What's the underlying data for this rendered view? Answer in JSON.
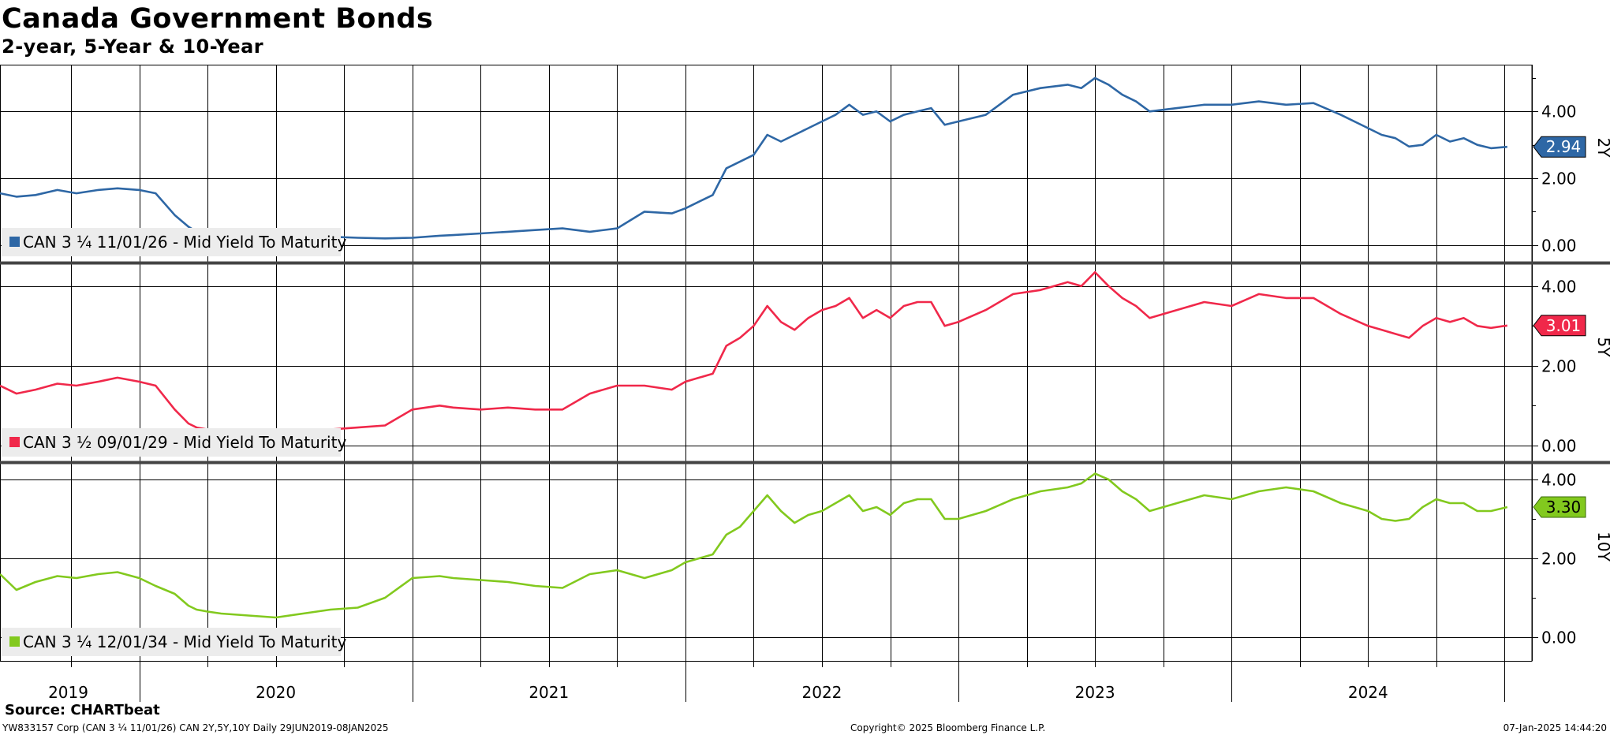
{
  "header": {
    "title": "Canada Government Bonds",
    "subtitle": "2-year, 5-Year & 10-Year"
  },
  "footer": {
    "source": "Source: CHARTbeat",
    "ticker_info": "YW833157 Corp (CAN 3 ¼ 11/01/26) CAN 2Y,5Y,10Y  Daily 29JUN2019-08JAN2025",
    "copyright": "Copyright© 2025 Bloomberg Finance L.P.",
    "timestamp": "07-Jan-2025 14:44:20"
  },
  "colors": {
    "series_2y": "#2e67a5",
    "series_5y": "#f0284a",
    "series_10y": "#82c91e",
    "grid": "#000000",
    "legend_bg": "#ececec",
    "separator": "#444444"
  },
  "chart_data": [
    {
      "type": "line",
      "pane_label": "2Y",
      "legend": "CAN 3 ¼ 11/01/26 - Mid Yield To Maturity",
      "last_value_label": "2.94",
      "ylim": [
        -0.5,
        5.4
      ],
      "yticks": [
        "4.00",
        "2.00",
        "0.00"
      ],
      "ytick_values": [
        4,
        2,
        0
      ],
      "x": [
        2019.49,
        2019.55,
        2019.62,
        2019.7,
        2019.77,
        2019.85,
        2019.92,
        2020.0,
        2020.06,
        2020.13,
        2020.18,
        2020.21,
        2020.25,
        2020.3,
        2020.4,
        2020.5,
        2020.6,
        2020.7,
        2020.8,
        2020.9,
        2021.0,
        2021.1,
        2021.15,
        2021.25,
        2021.35,
        2021.45,
        2021.55,
        2021.65,
        2021.75,
        2021.85,
        2021.95,
        2022.0,
        2022.05,
        2022.1,
        2022.15,
        2022.2,
        2022.25,
        2022.3,
        2022.35,
        2022.4,
        2022.45,
        2022.5,
        2022.55,
        2022.6,
        2022.65,
        2022.7,
        2022.75,
        2022.8,
        2022.85,
        2022.9,
        2022.95,
        2023.0,
        2023.1,
        2023.2,
        2023.3,
        2023.4,
        2023.45,
        2023.5,
        2023.55,
        2023.6,
        2023.65,
        2023.7,
        2023.8,
        2023.9,
        2024.0,
        2024.1,
        2024.2,
        2024.3,
        2024.4,
        2024.5,
        2024.55,
        2024.6,
        2024.65,
        2024.7,
        2024.75,
        2024.8,
        2024.85,
        2024.9,
        2024.95,
        2025.01
      ],
      "y": [
        1.55,
        1.45,
        1.5,
        1.65,
        1.55,
        1.65,
        1.7,
        1.65,
        1.55,
        0.9,
        0.55,
        0.4,
        0.35,
        0.3,
        0.3,
        0.28,
        0.25,
        0.25,
        0.22,
        0.2,
        0.22,
        0.28,
        0.3,
        0.35,
        0.4,
        0.45,
        0.5,
        0.4,
        0.5,
        1.0,
        0.95,
        1.1,
        1.3,
        1.5,
        2.3,
        2.5,
        2.7,
        3.3,
        3.1,
        3.3,
        3.5,
        3.7,
        3.9,
        4.2,
        3.9,
        4.0,
        3.7,
        3.9,
        4.0,
        4.1,
        3.6,
        3.7,
        3.9,
        4.5,
        4.7,
        4.8,
        4.7,
        5.0,
        4.8,
        4.5,
        4.3,
        4.0,
        4.1,
        4.2,
        4.2,
        4.3,
        4.2,
        4.25,
        3.9,
        3.5,
        3.3,
        3.2,
        2.95,
        3.0,
        3.3,
        3.1,
        3.2,
        3.0,
        2.9,
        2.94
      ]
    },
    {
      "type": "line",
      "pane_label": "5Y",
      "legend": "CAN 3 ½ 09/01/29 - Mid Yield To Maturity",
      "last_value_label": "3.01",
      "ylim": [
        -0.4,
        4.55
      ],
      "yticks": [
        "4.00",
        "2.00",
        "0.00"
      ],
      "ytick_values": [
        4,
        2,
        0
      ],
      "x": [
        2019.49,
        2019.55,
        2019.62,
        2019.7,
        2019.77,
        2019.85,
        2019.92,
        2020.0,
        2020.06,
        2020.13,
        2020.18,
        2020.21,
        2020.25,
        2020.3,
        2020.4,
        2020.5,
        2020.6,
        2020.7,
        2020.8,
        2020.9,
        2021.0,
        2021.1,
        2021.15,
        2021.25,
        2021.35,
        2021.45,
        2021.55,
        2021.65,
        2021.75,
        2021.85,
        2021.95,
        2022.0,
        2022.05,
        2022.1,
        2022.15,
        2022.2,
        2022.25,
        2022.3,
        2022.35,
        2022.4,
        2022.45,
        2022.5,
        2022.55,
        2022.6,
        2022.65,
        2022.7,
        2022.75,
        2022.8,
        2022.85,
        2022.9,
        2022.95,
        2023.0,
        2023.1,
        2023.2,
        2023.3,
        2023.4,
        2023.45,
        2023.5,
        2023.55,
        2023.6,
        2023.65,
        2023.7,
        2023.8,
        2023.9,
        2024.0,
        2024.1,
        2024.2,
        2024.3,
        2024.4,
        2024.5,
        2024.55,
        2024.6,
        2024.65,
        2024.7,
        2024.75,
        2024.8,
        2024.85,
        2024.9,
        2024.95,
        2025.01
      ],
      "y": [
        1.5,
        1.3,
        1.4,
        1.55,
        1.5,
        1.6,
        1.7,
        1.6,
        1.5,
        0.9,
        0.55,
        0.45,
        0.4,
        0.35,
        0.35,
        0.35,
        0.38,
        0.4,
        0.45,
        0.5,
        0.9,
        1.0,
        0.95,
        0.9,
        0.95,
        0.9,
        0.9,
        1.3,
        1.5,
        1.5,
        1.4,
        1.6,
        1.7,
        1.8,
        2.5,
        2.7,
        3.0,
        3.5,
        3.1,
        2.9,
        3.2,
        3.4,
        3.5,
        3.7,
        3.2,
        3.4,
        3.2,
        3.5,
        3.6,
        3.6,
        3.0,
        3.1,
        3.4,
        3.8,
        3.9,
        4.1,
        4.0,
        4.35,
        4.0,
        3.7,
        3.5,
        3.2,
        3.4,
        3.6,
        3.5,
        3.8,
        3.7,
        3.7,
        3.3,
        3.0,
        2.9,
        2.8,
        2.7,
        3.0,
        3.2,
        3.1,
        3.2,
        3.0,
        2.95,
        3.01
      ]
    },
    {
      "type": "line",
      "pane_label": "10Y",
      "legend": "CAN 3 ¼ 12/01/34 - Mid Yield To Maturity",
      "last_value_label": "3.30",
      "ylim": [
        -0.6,
        4.4
      ],
      "yticks": [
        "4.00",
        "2.00",
        "0.00"
      ],
      "ytick_values": [
        4,
        2,
        0
      ],
      "x": [
        2019.49,
        2019.55,
        2019.62,
        2019.7,
        2019.77,
        2019.85,
        2019.92,
        2020.0,
        2020.06,
        2020.13,
        2020.18,
        2020.21,
        2020.25,
        2020.3,
        2020.4,
        2020.5,
        2020.6,
        2020.7,
        2020.8,
        2020.9,
        2021.0,
        2021.1,
        2021.15,
        2021.25,
        2021.35,
        2021.45,
        2021.55,
        2021.65,
        2021.75,
        2021.85,
        2021.95,
        2022.0,
        2022.05,
        2022.1,
        2022.15,
        2022.2,
        2022.25,
        2022.3,
        2022.35,
        2022.4,
        2022.45,
        2022.5,
        2022.55,
        2022.6,
        2022.65,
        2022.7,
        2022.75,
        2022.8,
        2022.85,
        2022.9,
        2022.95,
        2023.0,
        2023.1,
        2023.2,
        2023.3,
        2023.4,
        2023.45,
        2023.5,
        2023.55,
        2023.6,
        2023.65,
        2023.7,
        2023.8,
        2023.9,
        2024.0,
        2024.1,
        2024.2,
        2024.3,
        2024.4,
        2024.5,
        2024.55,
        2024.6,
        2024.65,
        2024.7,
        2024.75,
        2024.8,
        2024.85,
        2024.9,
        2024.95,
        2025.01
      ],
      "y": [
        1.6,
        1.2,
        1.4,
        1.55,
        1.5,
        1.6,
        1.65,
        1.5,
        1.3,
        1.1,
        0.8,
        0.7,
        0.65,
        0.6,
        0.55,
        0.5,
        0.6,
        0.7,
        0.75,
        1.0,
        1.5,
        1.55,
        1.5,
        1.45,
        1.4,
        1.3,
        1.25,
        1.6,
        1.7,
        1.5,
        1.7,
        1.9,
        2.0,
        2.1,
        2.6,
        2.8,
        3.2,
        3.6,
        3.2,
        2.9,
        3.1,
        3.2,
        3.4,
        3.6,
        3.2,
        3.3,
        3.1,
        3.4,
        3.5,
        3.5,
        3.0,
        3.0,
        3.2,
        3.5,
        3.7,
        3.8,
        3.9,
        4.15,
        4.0,
        3.7,
        3.5,
        3.2,
        3.4,
        3.6,
        3.5,
        3.7,
        3.8,
        3.7,
        3.4,
        3.2,
        3.0,
        2.95,
        3.0,
        3.3,
        3.5,
        3.4,
        3.4,
        3.2,
        3.2,
        3.3
      ]
    }
  ],
  "x_axis": {
    "xlim": [
      2019.49,
      2025.1
    ],
    "year_labels": [
      "2019",
      "2020",
      "2021",
      "2022",
      "2023",
      "2024"
    ],
    "year_label_positions": [
      2019.74,
      2020.5,
      2021.5,
      2022.5,
      2023.5,
      2024.5
    ],
    "year_boundaries": [
      2020.0,
      2021.0,
      2022.0,
      2023.0,
      2024.0,
      2025.0
    ],
    "gridlines": [
      2019.75,
      2020.0,
      2020.25,
      2020.5,
      2020.75,
      2021.0,
      2021.25,
      2021.5,
      2021.75,
      2022.0,
      2022.25,
      2022.5,
      2022.75,
      2023.0,
      2023.25,
      2023.5,
      2023.75,
      2024.0,
      2024.25,
      2024.5,
      2024.75,
      2025.0
    ]
  }
}
